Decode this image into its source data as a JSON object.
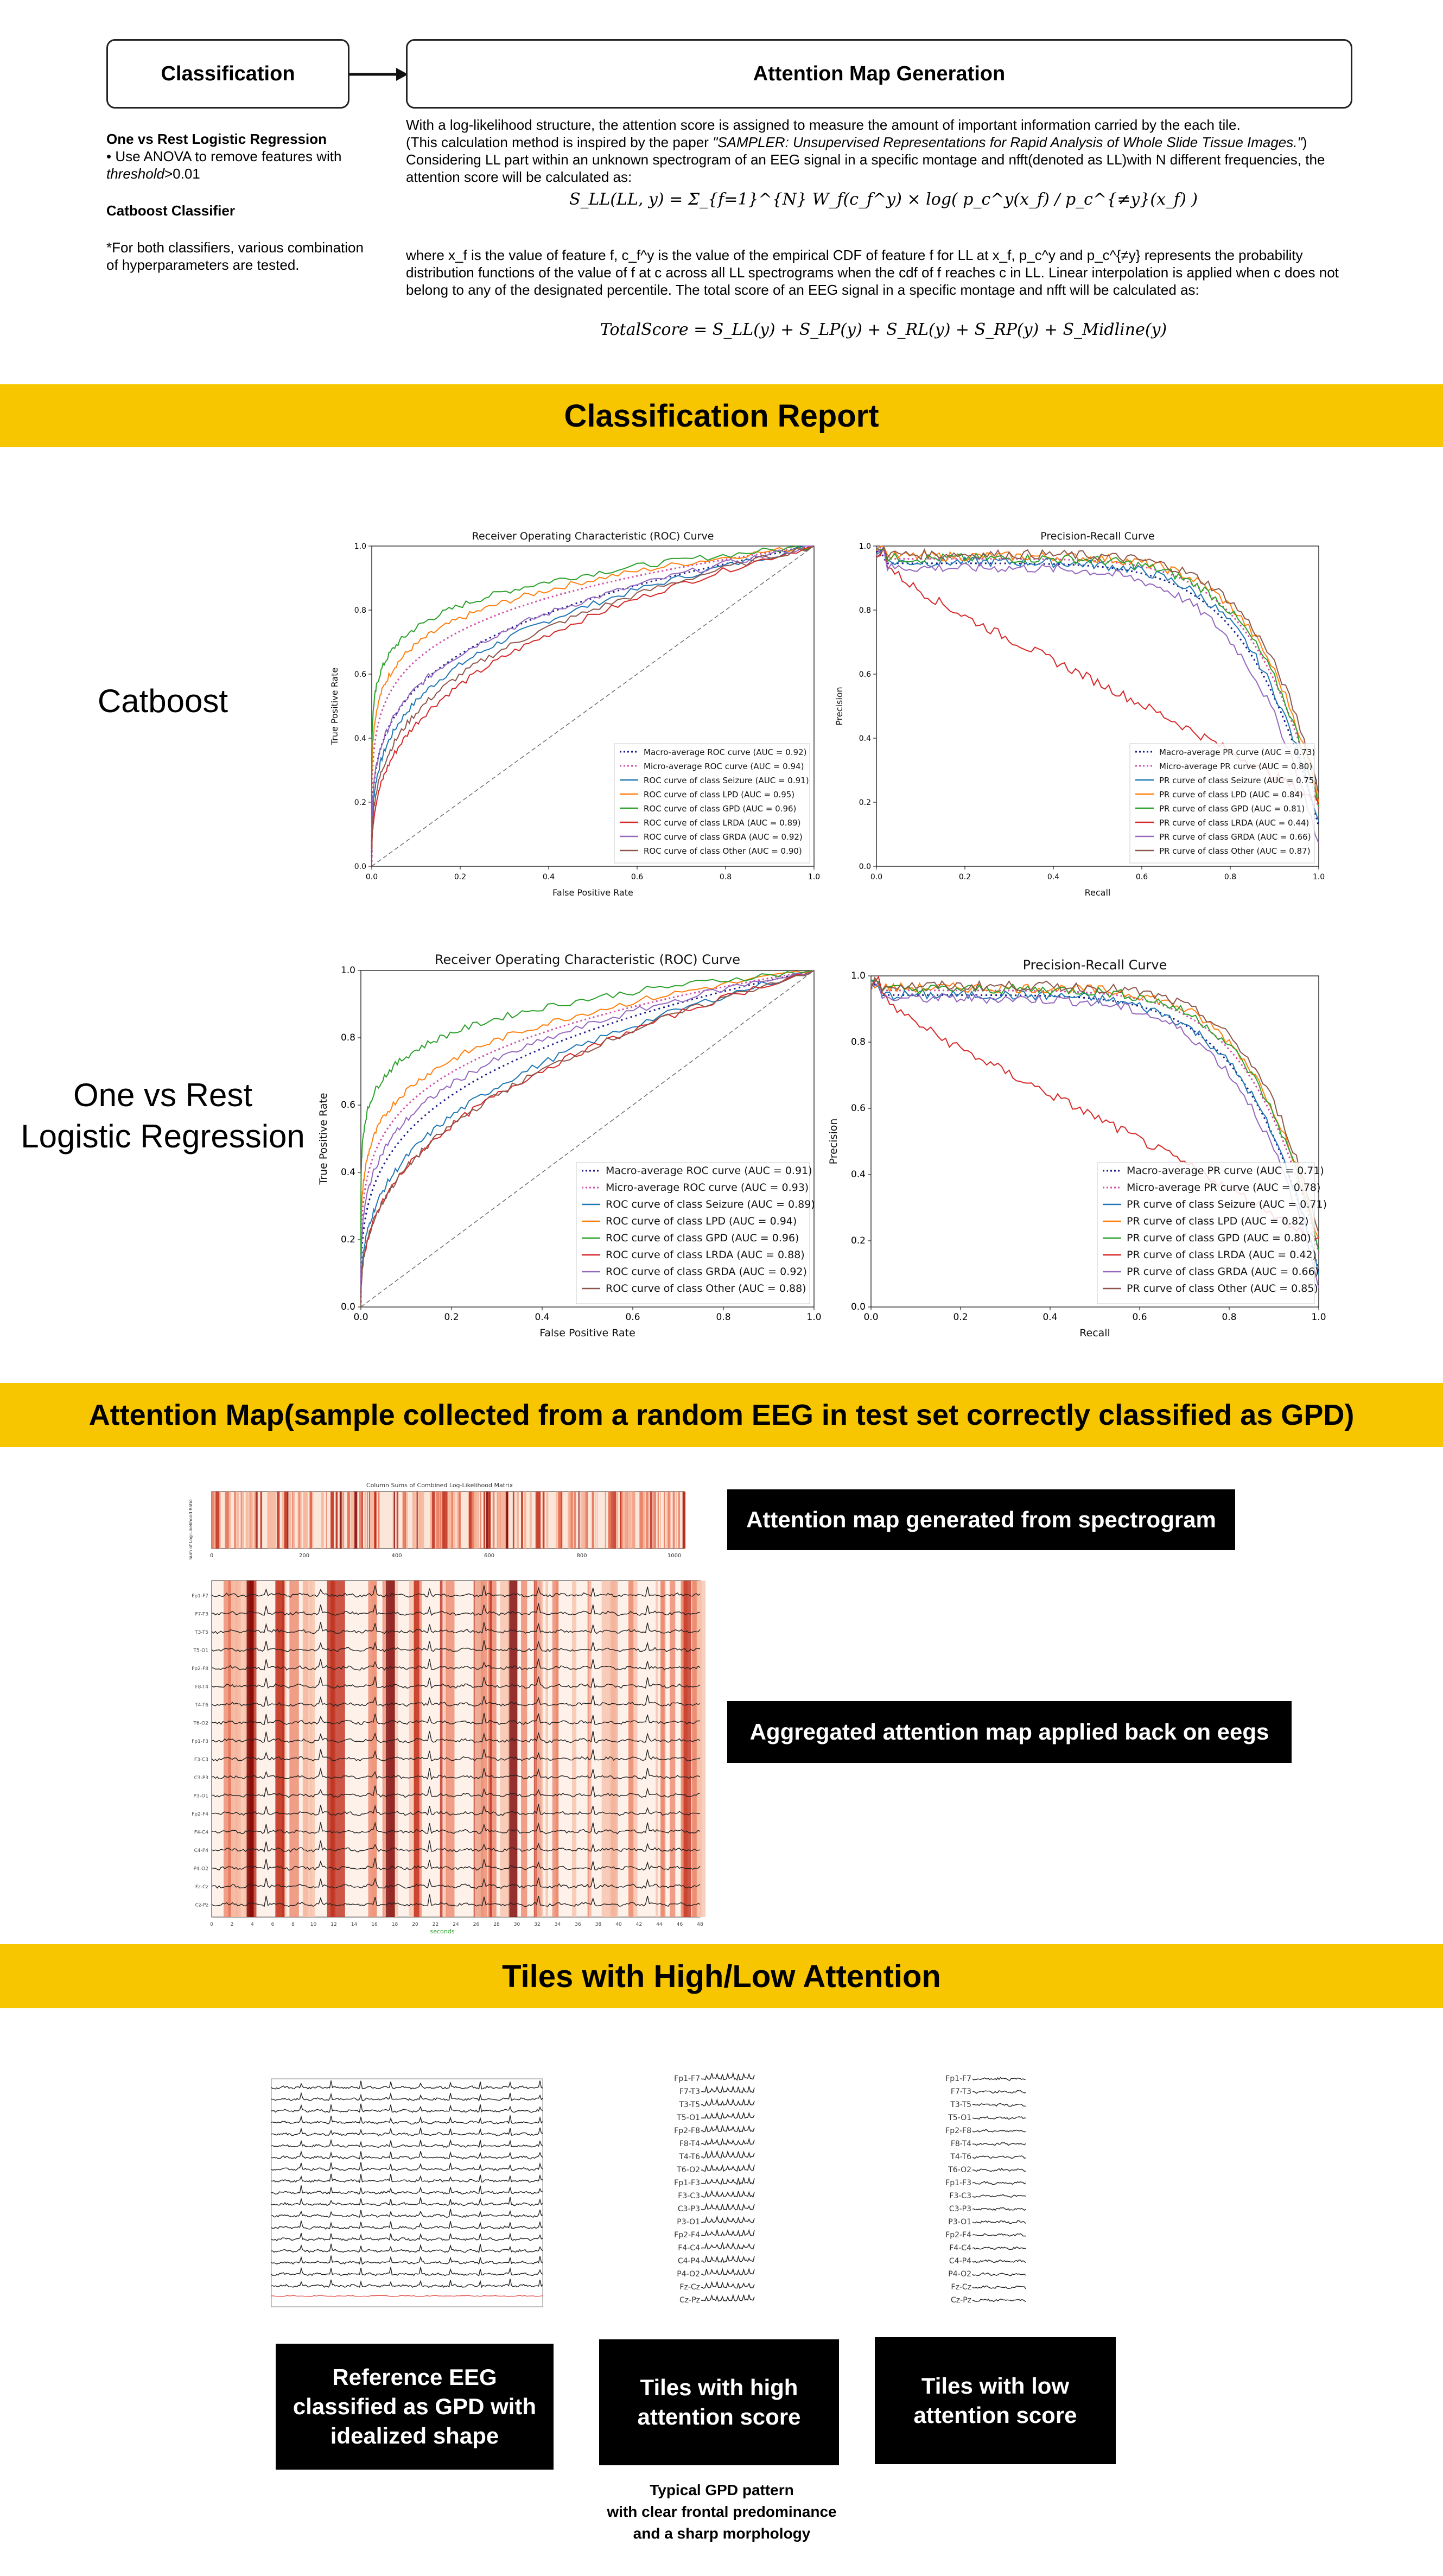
{
  "header": {
    "classification_box": "Classification",
    "attention_box": "Attention Map Generation"
  },
  "left_notes": {
    "ovr_title": "One vs Rest Logistic Regression",
    "ovr_bullet_prefix": "• Use ANOVA to remove features with",
    "ovr_bullet_italic": "threshold",
    "ovr_bullet_suffix": ">0.01",
    "catboost_title": "Catboost Classifier",
    "note": "*For both classifiers, various combination of hyperparameters are tested."
  },
  "attention_text": {
    "line1": "With a log-likelihood structure, the attention score is assigned to measure the amount of important information carried by the each tile.",
    "line2_prefix": "(This calculation method is inspired by the paper ",
    "line2_italic": "\"SAMPLER: Unsupervised Representations for Rapid Analysis of Whole Slide Tissue Images.\"",
    "line2_suffix": ")",
    "line3": "Considering LL part within an unknown spectrogram of an EEG signal in a specific montage and nfft(denoted as LL)with N different frequencies, the attention score will be calculated as:",
    "formula1": "S_LL(LL, y) = Σ_{f=1}^{N} W_f(c_f^y) × log( p_c^y(x_f) / p_c^{≠y}(x_f) )",
    "para2": "where x_f is the value of feature f, c_f^y is the value of the empirical CDF of feature f for LL at x_f, p_c^y and p_c^{≠y} represents the probability distribution functions of the value of f at c across all LL spectrograms when the cdf of f reaches c in LL. Linear interpolation is applied when c does not belong to any of the designated percentile. The total score of an EEG signal in a specific montage and nfft will be calculated as:",
    "formula2": "TotalScore = S_LL(y) + S_LP(y) + S_RL(y) + S_RP(y) + S_Midline(y)"
  },
  "banners": {
    "report": "Classification Report",
    "attention": "Attention Map(sample collected from a random EEG in test set correctly classified as GPD)",
    "tiles": "Tiles with High/Low Attention"
  },
  "row_labels": {
    "catboost": "Catboost",
    "ovr_line1": "One vs Rest",
    "ovr_line2": "Logistic Regression"
  },
  "chart_data": [
    {
      "type": "line",
      "model": "Catboost",
      "title": "Receiver Operating Characteristic (ROC) Curve",
      "xlabel": "False Positive Rate",
      "ylabel": "True Positive Rate",
      "xlim": [
        0,
        1
      ],
      "ylim": [
        0,
        1
      ],
      "ticks": [
        "0.0",
        "0.2",
        "0.4",
        "0.6",
        "0.8",
        "1.0"
      ],
      "legend_position": "lower-right",
      "series": [
        {
          "name": "Macro-average ROC curve (AUC = 0.92)",
          "color": "#1a1a8c",
          "dash": "dot",
          "auc": 0.92
        },
        {
          "name": "Micro-average ROC curve (AUC = 0.94)",
          "color": "#d14fa6",
          "dash": "dot",
          "auc": 0.94
        },
        {
          "name": "ROC curve of class Seizure (AUC = 0.91)",
          "color": "#1f77b4",
          "auc": 0.91
        },
        {
          "name": "ROC curve of class LPD (AUC = 0.95)",
          "color": "#ff7f0e",
          "auc": 0.95
        },
        {
          "name": "ROC curve of class GPD (AUC = 0.96)",
          "color": "#2ca02c",
          "auc": 0.96
        },
        {
          "name": "ROC curve of class LRDA (AUC = 0.89)",
          "color": "#d62728",
          "auc": 0.89
        },
        {
          "name": "ROC curve of class GRDA (AUC = 0.92)",
          "color": "#9467bd",
          "auc": 0.92
        },
        {
          "name": "ROC curve of class Other (AUC = 0.90)",
          "color": "#8c564b",
          "auc": 0.9
        }
      ]
    },
    {
      "type": "line",
      "model": "Catboost",
      "title": "Precision-Recall Curve",
      "xlabel": "Recall",
      "ylabel": "Precision",
      "xlim": [
        0,
        1
      ],
      "ylim": [
        0,
        1
      ],
      "ticks": [
        "0.0",
        "0.2",
        "0.4",
        "0.6",
        "0.8",
        "1.0"
      ],
      "legend_position": "lower-right",
      "series": [
        {
          "name": "Macro-average PR curve (AUC = 0.73)",
          "color": "#1a1a8c",
          "dash": "dot",
          "auc": 0.73
        },
        {
          "name": "Micro-average PR curve (AUC = 0.80)",
          "color": "#d14fa6",
          "dash": "dot",
          "auc": 0.8
        },
        {
          "name": "PR curve of class Seizure (AUC = 0.75)",
          "color": "#1f77b4",
          "auc": 0.75
        },
        {
          "name": "PR curve of class LPD (AUC = 0.84)",
          "color": "#ff7f0e",
          "auc": 0.84
        },
        {
          "name": "PR curve of class GPD (AUC = 0.81)",
          "color": "#2ca02c",
          "auc": 0.81
        },
        {
          "name": "PR curve of class LRDA (AUC = 0.44)",
          "color": "#d62728",
          "auc": 0.44
        },
        {
          "name": "PR curve of class GRDA (AUC = 0.66)",
          "color": "#9467bd",
          "auc": 0.66
        },
        {
          "name": "PR curve of class Other (AUC = 0.87)",
          "color": "#8c564b",
          "auc": 0.87
        }
      ]
    },
    {
      "type": "line",
      "model": "One vs Rest Logistic Regression",
      "title": "Receiver Operating Characteristic (ROC) Curve",
      "xlabel": "False Positive Rate",
      "ylabel": "True Positive Rate",
      "xlim": [
        0,
        1
      ],
      "ylim": [
        0,
        1
      ],
      "ticks": [
        "0.0",
        "0.2",
        "0.4",
        "0.6",
        "0.8",
        "1.0"
      ],
      "legend_position": "lower-right",
      "series": [
        {
          "name": "Macro-average ROC curve (AUC = 0.91)",
          "color": "#1a1a8c",
          "dash": "dot",
          "auc": 0.91
        },
        {
          "name": "Micro-average ROC curve (AUC = 0.93)",
          "color": "#d14fa6",
          "dash": "dot",
          "auc": 0.93
        },
        {
          "name": "ROC curve of class Seizure (AUC = 0.89)",
          "color": "#1f77b4",
          "auc": 0.89
        },
        {
          "name": "ROC curve of class LPD (AUC = 0.94)",
          "color": "#ff7f0e",
          "auc": 0.94
        },
        {
          "name": "ROC curve of class GPD (AUC = 0.96)",
          "color": "#2ca02c",
          "auc": 0.96
        },
        {
          "name": "ROC curve of class LRDA (AUC = 0.88)",
          "color": "#d62728",
          "auc": 0.88
        },
        {
          "name": "ROC curve of class GRDA (AUC = 0.92)",
          "color": "#9467bd",
          "auc": 0.92
        },
        {
          "name": "ROC curve of class Other (AUC = 0.88)",
          "color": "#8c564b",
          "auc": 0.88
        }
      ]
    },
    {
      "type": "line",
      "model": "One vs Rest Logistic Regression",
      "title": "Precision-Recall Curve",
      "xlabel": "Recall",
      "ylabel": "Precision",
      "xlim": [
        0,
        1
      ],
      "ylim": [
        0,
        1
      ],
      "ticks": [
        "0.0",
        "0.2",
        "0.4",
        "0.6",
        "0.8",
        "1.0"
      ],
      "legend_position": "lower-right",
      "series": [
        {
          "name": "Macro-average PR curve (AUC = 0.71)",
          "color": "#1a1a8c",
          "dash": "dot",
          "auc": 0.71
        },
        {
          "name": "Micro-average PR curve (AUC = 0.78)",
          "color": "#d14fa6",
          "dash": "dot",
          "auc": 0.78
        },
        {
          "name": "PR curve of class Seizure (AUC = 0.71)",
          "color": "#1f77b4",
          "auc": 0.71
        },
        {
          "name": "PR curve of class LPD (AUC = 0.82)",
          "color": "#ff7f0e",
          "auc": 0.82
        },
        {
          "name": "PR curve of class GPD (AUC = 0.80)",
          "color": "#2ca02c",
          "auc": 0.8
        },
        {
          "name": "PR curve of class LRDA (AUC = 0.42)",
          "color": "#d62728",
          "auc": 0.42
        },
        {
          "name": "PR curve of class GRDA (AUC = 0.66)",
          "color": "#9467bd",
          "auc": 0.66
        },
        {
          "name": "PR curve of class Other (AUC = 0.85)",
          "color": "#8c564b",
          "auc": 0.85
        }
      ]
    }
  ],
  "attention_map": {
    "strip_title": "Column Sums of Combined Log-Likelihood Matrix",
    "strip_ylabel": "Sum of Log-Likelihood Ratio",
    "strip_ticks": [
      "0",
      "200",
      "400",
      "600",
      "800",
      "1000"
    ],
    "eeg_channels": [
      "Fp1-F7",
      "F7-T3",
      "T3-T5",
      "T5-O1",
      "Fp2-F8",
      "F8-T4",
      "T4-T6",
      "T6-O2",
      "Fp1-F3",
      "F3-C3",
      "C3-P3",
      "P3-O1",
      "Fp2-F4",
      "F4-C4",
      "C4-P4",
      "P4-O2",
      "Fz-Cz",
      "Cz-Pz"
    ],
    "eeg_ticks": [
      "0",
      "2",
      "4",
      "6",
      "8",
      "10",
      "12",
      "14",
      "16",
      "18",
      "20",
      "22",
      "24",
      "26",
      "28",
      "30",
      "32",
      "34",
      "36",
      "38",
      "40",
      "42",
      "44",
      "46",
      "48"
    ],
    "eeg_xlabel": "seconds",
    "label_spectrogram": "Attention map generated from spectrogram",
    "label_eegs": "Aggregated attention map applied back on eegs"
  },
  "tiles": {
    "high_channels": [
      "Fp1-F7",
      "F7-T3",
      "T3-T5",
      "T5-O1",
      "Fp2-F8",
      "F8-T4",
      "T4-T6",
      "T6-O2",
      "Fp1-F3",
      "F3-C3",
      "C3-P3",
      "P3-O1",
      "Fp2-F4",
      "F4-C4",
      "C4-P4",
      "P4-O2",
      "Fz-Cz",
      "Cz-Pz"
    ],
    "low_channels": [
      "Fp1-F7",
      "F7-T3",
      "T3-T5",
      "T5-O1",
      "Fp2-F8",
      "F8-T4",
      "T4-T6",
      "T6-O2",
      "Fp1-F3",
      "F3-C3",
      "C3-P3",
      "P3-O1",
      "Fp2-F4",
      "F4-C4",
      "C4-P4",
      "P4-O2",
      "Fz-Cz",
      "Cz-Pz"
    ],
    "ref_label": "Reference EEG classified as GPD with idealized shape",
    "high_label": "Tiles with high attention score",
    "low_label": "Tiles with low attention score",
    "caption_line1": "Typical GPD pattern",
    "caption_line2": "with clear frontal predominance",
    "caption_line3": "and a sharp morphology"
  }
}
